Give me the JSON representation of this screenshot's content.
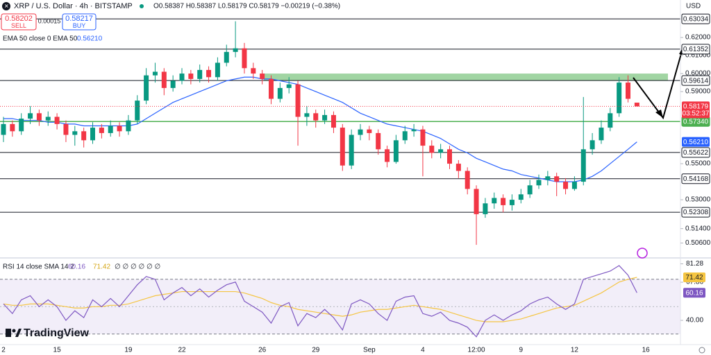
{
  "chart_data": {
    "type": "candlestick",
    "title": "XRP / U.S. Dollar · 4h · BITSTAMP",
    "ohlc_text": "O0.58387 H0.58387 L0.58179 C0.58179 −0.00219 (−0.38%)",
    "sell": {
      "price": "0.58202",
      "label": "SELL"
    },
    "spread": "0.00015",
    "buy": {
      "price": "0.58217",
      "label": "BUY"
    },
    "currency": "USD",
    "categories": [
      "2",
      null,
      null,
      null,
      null,
      null,
      "15",
      null,
      null,
      null,
      null,
      null,
      null,
      null,
      "19",
      null,
      null,
      null,
      null,
      null,
      "22",
      null,
      null,
      null,
      null,
      null,
      null,
      null,
      null,
      "26",
      null,
      null,
      null,
      null,
      null,
      "29",
      null,
      null,
      null,
      null,
      null,
      "Sep",
      null,
      null,
      null,
      null,
      null,
      "4",
      null,
      null,
      null,
      null,
      null,
      "12:00",
      null,
      null,
      null,
      null,
      "9",
      null,
      null,
      null,
      null,
      null,
      "12",
      null,
      null,
      null,
      null,
      null,
      null,
      null,
      "16",
      null,
      null,
      null
    ],
    "open": [
      0.566,
      0.572,
      0.568,
      0.575,
      0.578,
      0.574,
      0.576,
      0.572,
      0.566,
      0.568,
      0.563,
      0.57,
      0.567,
      0.571,
      0.568,
      0.574,
      0.585,
      0.599,
      0.601,
      0.592,
      0.596,
      0.6,
      0.597,
      0.602,
      0.598,
      0.606,
      0.612,
      0.614,
      0.603,
      0.6,
      0.597,
      0.586,
      0.592,
      0.594,
      0.576,
      0.578,
      0.574,
      0.577,
      0.57,
      0.549,
      0.566,
      0.569,
      0.567,
      0.558,
      0.551,
      0.563,
      0.568,
      0.569,
      0.56,
      0.556,
      0.558,
      0.55,
      0.546,
      0.536,
      0.522,
      0.528,
      0.531,
      0.527,
      0.53,
      0.533,
      0.538,
      0.541,
      0.543,
      0.54,
      0.536,
      0.54,
      0.558,
      0.563,
      0.57,
      0.578,
      0.595,
      0.58387,
      null,
      null,
      null,
      null
    ],
    "high": [
      0.576,
      0.574,
      0.578,
      0.582,
      0.58,
      0.579,
      0.578,
      0.574,
      0.571,
      0.57,
      0.573,
      0.572,
      0.574,
      0.573,
      0.577,
      0.588,
      0.603,
      0.606,
      0.603,
      0.599,
      0.603,
      0.602,
      0.605,
      0.604,
      0.609,
      0.616,
      0.629,
      0.617,
      0.606,
      0.602,
      0.599,
      0.595,
      0.598,
      0.596,
      0.582,
      0.58,
      0.58,
      0.579,
      0.572,
      0.569,
      0.572,
      0.571,
      0.569,
      0.56,
      0.566,
      0.571,
      0.572,
      0.571,
      0.563,
      0.561,
      0.56,
      0.552,
      0.548,
      0.538,
      0.531,
      0.534,
      0.533,
      0.533,
      0.536,
      0.541,
      0.544,
      0.546,
      0.545,
      0.542,
      0.543,
      0.587,
      0.567,
      0.574,
      0.581,
      0.598,
      0.599,
      0.58387,
      null,
      null,
      null,
      null
    ],
    "low": [
      0.562,
      0.565,
      0.566,
      0.572,
      0.571,
      0.571,
      0.569,
      0.562,
      0.56,
      0.559,
      0.561,
      0.564,
      0.565,
      0.565,
      0.566,
      0.572,
      0.583,
      0.595,
      0.588,
      0.59,
      0.594,
      0.594,
      0.595,
      0.595,
      0.596,
      0.604,
      0.609,
      0.6,
      0.597,
      0.594,
      0.583,
      0.584,
      0.589,
      0.56,
      0.571,
      0.57,
      0.572,
      0.567,
      0.546,
      0.547,
      0.563,
      0.563,
      0.555,
      0.548,
      0.55,
      0.561,
      0.565,
      0.543,
      0.553,
      0.553,
      0.547,
      0.542,
      0.533,
      0.505,
      0.52,
      0.525,
      0.523,
      0.524,
      0.528,
      0.531,
      0.536,
      0.538,
      0.532,
      0.533,
      0.535,
      0.538,
      0.555,
      0.561,
      0.568,
      0.576,
      0.584,
      0.58179,
      null,
      null,
      null,
      null
    ],
    "close": [
      0.572,
      0.568,
      0.575,
      0.578,
      0.574,
      0.576,
      0.572,
      0.566,
      0.568,
      0.563,
      0.57,
      0.567,
      0.571,
      0.568,
      0.574,
      0.585,
      0.599,
      0.601,
      0.592,
      0.596,
      0.6,
      0.597,
      0.602,
      0.598,
      0.606,
      0.612,
      0.614,
      0.603,
      0.6,
      0.597,
      0.586,
      0.592,
      0.594,
      0.576,
      0.578,
      0.574,
      0.577,
      0.57,
      0.549,
      0.566,
      0.569,
      0.567,
      0.558,
      0.551,
      0.563,
      0.568,
      0.569,
      0.56,
      0.556,
      0.558,
      0.55,
      0.546,
      0.536,
      0.522,
      0.528,
      0.531,
      0.527,
      0.53,
      0.533,
      0.538,
      0.541,
      0.543,
      0.54,
      0.536,
      0.54,
      0.558,
      0.563,
      0.57,
      0.578,
      0.595,
      0.586,
      0.58179,
      null,
      null,
      null,
      null
    ],
    "up_color": "#089981",
    "down_color": "#f23645",
    "ylim": [
      0.4985,
      0.6408
    ],
    "yticks": [
      {
        "value": 0.62,
        "label": "0.62000"
      },
      {
        "value": 0.61,
        "label": "0.61000"
      },
      {
        "value": 0.6,
        "label": "0.60000"
      },
      {
        "value": 0.59,
        "label": "0.59000"
      },
      {
        "value": 0.55,
        "label": "0.55000"
      },
      {
        "value": 0.53,
        "label": "0.53000"
      },
      {
        "value": 0.514,
        "label": "0.51400"
      },
      {
        "value": 0.506,
        "label": "0.50600"
      }
    ],
    "levels": [
      0.63034,
      0.61352,
      0.59614,
      0.55622,
      0.54168,
      0.52308
    ],
    "key_level": {
      "value": 0.5734,
      "label": "0.57340",
      "color": "#4caf50"
    },
    "zone": {
      "from": 0.5961,
      "to": 0.6,
      "color": "#81c784"
    },
    "last_price": {
      "countdown": "03:52:37",
      "color": "#f23645"
    },
    "ema": {
      "legend": "EMA 50 close 0 EMA 50",
      "value_label": "0.56210",
      "color": "#2962ff",
      "values": [
        0.575,
        0.575,
        0.574,
        0.574,
        0.574,
        0.573,
        0.573,
        0.572,
        0.572,
        0.571,
        0.571,
        0.571,
        0.571,
        0.571,
        0.571,
        0.572,
        0.575,
        0.578,
        0.581,
        0.584,
        0.586,
        0.588,
        0.59,
        0.592,
        0.594,
        0.596,
        0.597,
        0.598,
        0.598,
        0.597,
        0.597,
        0.596,
        0.595,
        0.594,
        0.592,
        0.59,
        0.588,
        0.586,
        0.584,
        0.581,
        0.578,
        0.576,
        0.574,
        0.572,
        0.571,
        0.57,
        0.569,
        0.568,
        0.566,
        0.564,
        0.561,
        0.558,
        0.556,
        0.553,
        0.551,
        0.549,
        0.547,
        0.546,
        0.544,
        0.543,
        0.542,
        0.541,
        0.54,
        0.54,
        0.54,
        0.541,
        0.543,
        0.546,
        0.55,
        0.554,
        0.558,
        0.5621,
        null,
        null,
        null,
        null
      ]
    },
    "rsi": {
      "legend": "RSI 14 close SMA 14 2",
      "na": "∅ ∅ ∅ ∅ ∅ ∅",
      "color": "#7e57c2",
      "band_color": "#ede7f6",
      "ylim": [
        22.3,
        85.6
      ],
      "yticks": [
        81.28,
        67.86,
        {
          "value": 40,
          "label": "40.00"
        }
      ],
      "band": [
        30,
        70
      ],
      "mid": 50,
      "values": [
        52,
        45,
        55,
        58,
        50,
        55,
        50,
        40,
        47,
        42,
        55,
        50,
        56,
        50,
        58,
        66,
        72,
        70,
        55,
        60,
        64,
        58,
        63,
        57,
        62,
        66,
        68,
        54,
        50,
        46,
        38,
        50,
        53,
        36,
        45,
        42,
        48,
        42,
        33,
        52,
        55,
        52,
        45,
        40,
        54,
        57,
        58,
        45,
        43,
        46,
        40,
        38,
        35,
        28,
        40,
        44,
        40,
        44,
        47,
        52,
        55,
        57,
        52,
        48,
        52,
        70,
        72,
        74,
        76,
        80,
        73,
        60.16,
        null,
        null,
        null,
        null
      ],
      "sma": {
        "color": "#f5c542",
        "values": [
          52,
          51,
          51,
          52,
          52,
          52,
          51,
          50,
          49,
          49,
          50,
          50,
          51,
          51,
          52,
          54,
          56,
          58,
          59,
          60,
          61,
          61,
          61,
          61,
          61,
          61,
          61,
          60,
          58,
          56,
          53,
          51,
          50,
          48,
          47,
          46,
          45,
          44,
          43,
          44,
          46,
          47,
          48,
          48,
          49,
          50,
          51,
          50,
          49,
          48,
          46,
          44,
          42,
          40,
          39,
          39,
          39,
          40,
          41,
          43,
          45,
          47,
          49,
          50,
          51,
          54,
          57,
          60,
          64,
          68,
          70,
          71.42,
          null,
          null,
          null,
          null
        ]
      }
    },
    "logo": "TradingView"
  }
}
